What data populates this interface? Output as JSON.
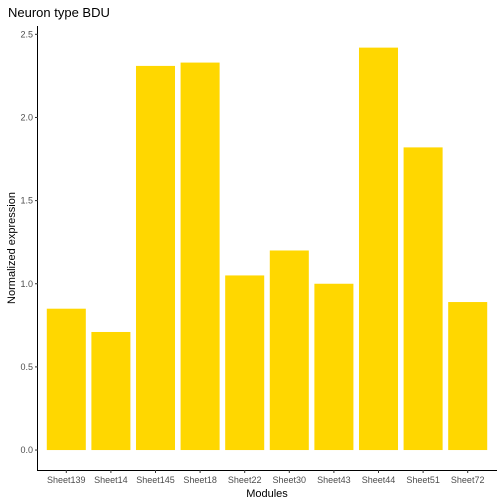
{
  "chart_data": {
    "type": "bar",
    "title": "Neuron type BDU",
    "xlabel": "Modules",
    "ylabel": "Normalized expression",
    "categories": [
      "Sheet139",
      "Sheet14",
      "Sheet145",
      "Sheet18",
      "Sheet22",
      "Sheet30",
      "Sheet43",
      "Sheet44",
      "Sheet51",
      "Sheet72"
    ],
    "values": [
      0.85,
      0.71,
      2.31,
      2.33,
      1.05,
      1.2,
      1.0,
      2.42,
      1.82,
      0.89
    ],
    "ylim": [
      -0.12,
      2.55
    ],
    "yticks": [
      0.0,
      0.5,
      1.0,
      1.5,
      2.0,
      2.5
    ],
    "ytick_labels": [
      "0.0",
      "0.5",
      "1.0",
      "1.5",
      "2.0",
      "2.5"
    ],
    "bar_color": "#FFD700",
    "grid": false,
    "legend": "none"
  }
}
